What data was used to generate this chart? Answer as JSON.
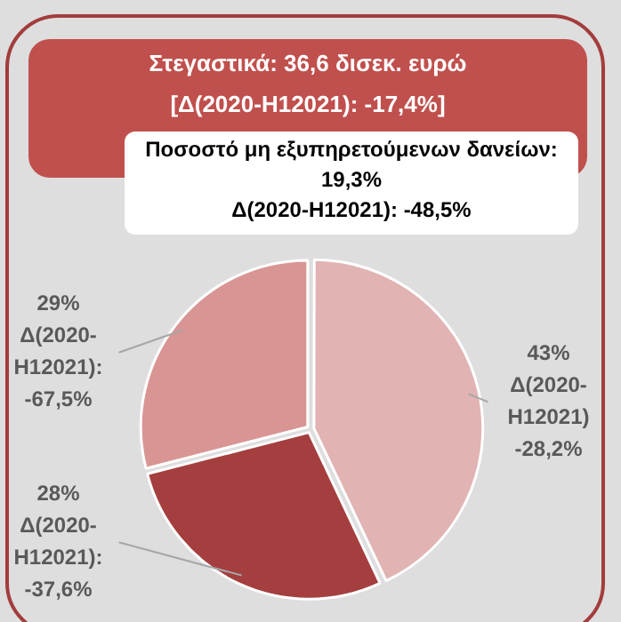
{
  "chart_data": {
    "type": "pie",
    "title": "Στεγαστικά: 36,6 δισεκ. ευρώ",
    "subtitle": "[Δ(2020-H12021): -17,4%]",
    "annotations": [
      "Ποσοστό μη εξυπηρετούμενων δανείων: 19,3%",
      "Δ(2020-H12021): -48,5%"
    ],
    "categories": [
      null,
      null,
      null
    ],
    "values": [
      43,
      28,
      29
    ],
    "colors": [
      "#e2b3b3",
      "#a53e3e",
      "#d99594"
    ],
    "value_labels": [
      "43% Δ(2020-H12021) -28,2%",
      "28% Δ(2020-H12021): -37,6%",
      "29% Δ(2020-H12021): -67,5%"
    ],
    "legend": false
  }
}
